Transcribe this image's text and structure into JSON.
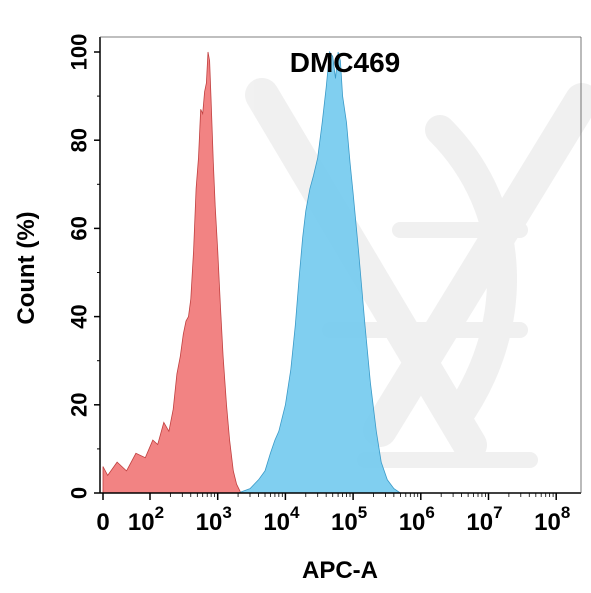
{
  "chart_data": {
    "type": "area",
    "title": "DMC469",
    "xlabel": "APC-A",
    "ylabel": "Count  (%)",
    "x_scale": "biexponential",
    "xlim": [
      0,
      100000000
    ],
    "ylim": [
      0,
      100
    ],
    "x_ticks": [
      {
        "value": 0,
        "base": "0",
        "exp": ""
      },
      {
        "value": 100,
        "base": "10",
        "exp": "2"
      },
      {
        "value": 1000,
        "base": "10",
        "exp": "3"
      },
      {
        "value": 10000,
        "base": "10",
        "exp": "4"
      },
      {
        "value": 100000,
        "base": "10",
        "exp": "5"
      },
      {
        "value": 1000000,
        "base": "10",
        "exp": "6"
      },
      {
        "value": 10000000,
        "base": "10",
        "exp": "7"
      },
      {
        "value": 100000000,
        "base": "10",
        "exp": "8"
      }
    ],
    "y_ticks": [
      "0",
      "20",
      "40",
      "60",
      "80",
      "100"
    ],
    "grid": false,
    "series": [
      {
        "color": "#f07272",
        "stroke": "#c04040",
        "points": [
          [
            0,
            6
          ],
          [
            10,
            4
          ],
          [
            30,
            7
          ],
          [
            50,
            5
          ],
          [
            70,
            9
          ],
          [
            90,
            8
          ],
          [
            110,
            12
          ],
          [
            130,
            11
          ],
          [
            160,
            16
          ],
          [
            190,
            14
          ],
          [
            220,
            19
          ],
          [
            250,
            27
          ],
          [
            280,
            31
          ],
          [
            310,
            36
          ],
          [
            340,
            39
          ],
          [
            370,
            40
          ],
          [
            400,
            44
          ],
          [
            440,
            55
          ],
          [
            480,
            69
          ],
          [
            520,
            76
          ],
          [
            560,
            87
          ],
          [
            600,
            86
          ],
          [
            640,
            91
          ],
          [
            680,
            93
          ],
          [
            720,
            100
          ],
          [
            760,
            98
          ],
          [
            800,
            89
          ],
          [
            860,
            75
          ],
          [
            920,
            65
          ],
          [
            1000,
            55
          ],
          [
            1100,
            42
          ],
          [
            1200,
            31
          ],
          [
            1350,
            20
          ],
          [
            1500,
            12
          ],
          [
            1700,
            5
          ],
          [
            1900,
            2
          ],
          [
            2200,
            0
          ]
        ]
      },
      {
        "color": "#6ec8ee",
        "stroke": "#3a9ac8",
        "points": [
          [
            2000,
            0
          ],
          [
            3000,
            1
          ],
          [
            4000,
            3
          ],
          [
            5000,
            5
          ],
          [
            6000,
            9
          ],
          [
            7000,
            12
          ],
          [
            8000,
            14
          ],
          [
            10000,
            20
          ],
          [
            12000,
            28
          ],
          [
            14000,
            38
          ],
          [
            16000,
            49
          ],
          [
            18000,
            58
          ],
          [
            20000,
            64
          ],
          [
            23000,
            69
          ],
          [
            26000,
            72
          ],
          [
            30000,
            76
          ],
          [
            35000,
            84
          ],
          [
            40000,
            92
          ],
          [
            45000,
            100
          ],
          [
            50000,
            99
          ],
          [
            55000,
            94
          ],
          [
            60000,
            100
          ],
          [
            65000,
            98
          ],
          [
            70000,
            90
          ],
          [
            80000,
            84
          ],
          [
            90000,
            75
          ],
          [
            100000,
            68
          ],
          [
            120000,
            55
          ],
          [
            150000,
            38
          ],
          [
            180000,
            25
          ],
          [
            220000,
            14
          ],
          [
            260000,
            7
          ],
          [
            320000,
            3
          ],
          [
            400000,
            1
          ],
          [
            500000,
            0
          ]
        ]
      }
    ]
  }
}
